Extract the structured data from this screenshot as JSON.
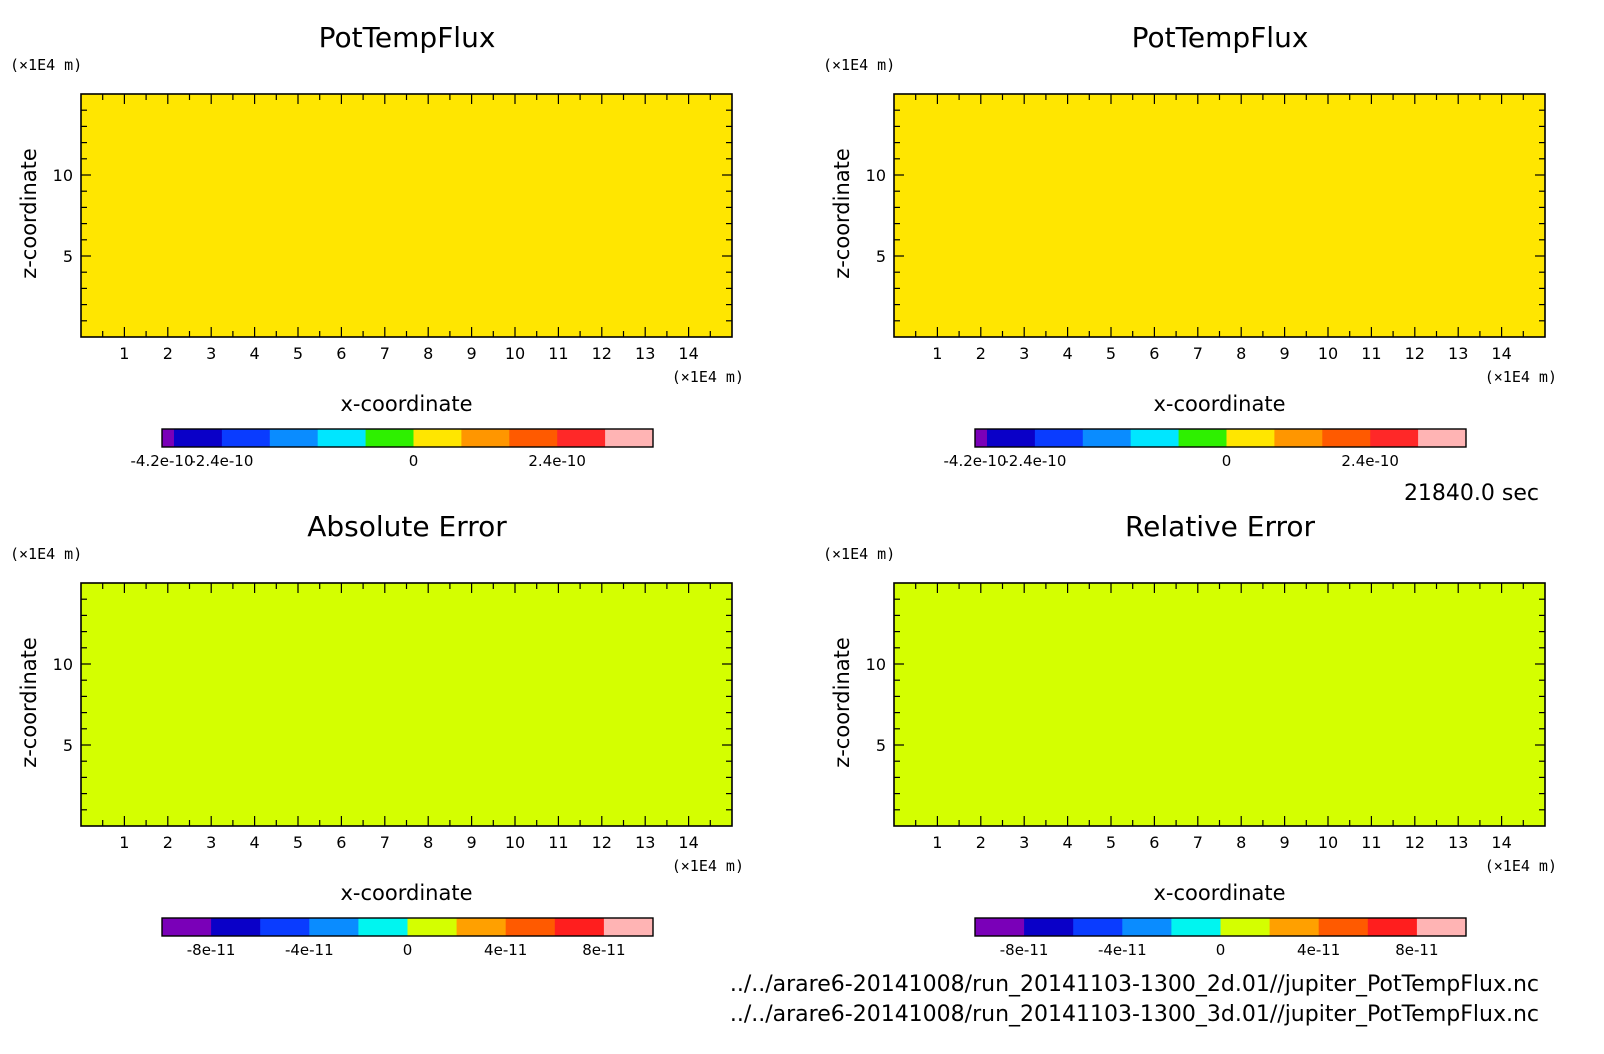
{
  "time_label": "21840.0 sec",
  "files": [
    "../../arare6-20141008/run_20141103-1300_2d.01//jupiter_PotTempFlux.nc",
    "../../arare6-20141008/run_20141103-1300_3d.01//jupiter_PotTempFlux.nc"
  ],
  "chart_data": [
    {
      "type": "heatmap",
      "title": "PotTempFlux",
      "xlabel": "x-coordinate",
      "ylabel": "z-coordinate",
      "x_unit": "(×1E4 m)",
      "y_unit": "(×1E4 m)",
      "xlim": [
        0,
        15
      ],
      "ylim": [
        0,
        15
      ],
      "x_ticks": [
        "1",
        "2",
        "3",
        "4",
        "5",
        "6",
        "7",
        "8",
        "9",
        "10",
        "11",
        "12",
        "13",
        "14"
      ],
      "y_ticks": [
        "5",
        "10"
      ],
      "field_color": "#ffe600",
      "colorbar": {
        "colors": [
          "#7a00b8",
          "#0a00c8",
          "#0a3cff",
          "#0a8cff",
          "#00e6ff",
          "#2ef000",
          "#ffe600",
          "#ff9600",
          "#ff5a00",
          "#ff2828",
          "#ffb4b4"
        ],
        "widths": [
          0.25,
          1,
          1,
          1,
          1,
          1,
          1,
          1,
          1,
          1,
          1
        ],
        "labels": [
          "-4.2e-10",
          "-2.4e-10",
          "0",
          "2.4e-10"
        ],
        "label_edges": [
          0,
          1.25,
          5.25,
          8.25
        ]
      }
    },
    {
      "type": "heatmap",
      "title": "PotTempFlux",
      "xlabel": "x-coordinate",
      "ylabel": "z-coordinate",
      "x_unit": "(×1E4 m)",
      "y_unit": "(×1E4 m)",
      "xlim": [
        0,
        15
      ],
      "ylim": [
        0,
        15
      ],
      "x_ticks": [
        "1",
        "2",
        "3",
        "4",
        "5",
        "6",
        "7",
        "8",
        "9",
        "10",
        "11",
        "12",
        "13",
        "14"
      ],
      "y_ticks": [
        "5",
        "10"
      ],
      "field_color": "#ffe600",
      "colorbar": {
        "colors": [
          "#7a00b8",
          "#0a00c8",
          "#0a3cff",
          "#0a8cff",
          "#00e6ff",
          "#2ef000",
          "#ffe600",
          "#ff9600",
          "#ff5a00",
          "#ff2828",
          "#ffb4b4"
        ],
        "widths": [
          0.25,
          1,
          1,
          1,
          1,
          1,
          1,
          1,
          1,
          1,
          1
        ],
        "labels": [
          "-4.2e-10",
          "-2.4e-10",
          "0",
          "2.4e-10"
        ],
        "label_edges": [
          0,
          1.25,
          5.25,
          8.25
        ]
      }
    },
    {
      "type": "heatmap",
      "title": "Absolute Error",
      "xlabel": "x-coordinate",
      "ylabel": "z-coordinate",
      "x_unit": "(×1E4 m)",
      "y_unit": "(×1E4 m)",
      "xlim": [
        0,
        15
      ],
      "ylim": [
        0,
        15
      ],
      "x_ticks": [
        "1",
        "2",
        "3",
        "4",
        "5",
        "6",
        "7",
        "8",
        "9",
        "10",
        "11",
        "12",
        "13",
        "14"
      ],
      "y_ticks": [
        "5",
        "10"
      ],
      "field_color": "#d4ff00",
      "colorbar": {
        "colors": [
          "#7a00b8",
          "#0a00c8",
          "#0a3cff",
          "#0a8cff",
          "#00f5f0",
          "#d4ff00",
          "#ffa000",
          "#ff5a00",
          "#ff1e1e",
          "#ffb4b4"
        ],
        "widths": [
          1,
          1,
          1,
          1,
          1,
          1,
          1,
          1,
          1,
          1
        ],
        "labels": [
          "-8e-11",
          "-4e-11",
          "0",
          "4e-11",
          "8e-11"
        ],
        "label_edges": [
          1,
          3,
          5,
          7,
          9
        ]
      }
    },
    {
      "type": "heatmap",
      "title": "Relative Error",
      "xlabel": "x-coordinate",
      "ylabel": "z-coordinate",
      "x_unit": "(×1E4 m)",
      "y_unit": "(×1E4 m)",
      "xlim": [
        0,
        15
      ],
      "ylim": [
        0,
        15
      ],
      "x_ticks": [
        "1",
        "2",
        "3",
        "4",
        "5",
        "6",
        "7",
        "8",
        "9",
        "10",
        "11",
        "12",
        "13",
        "14"
      ],
      "y_ticks": [
        "5",
        "10"
      ],
      "field_color": "#d4ff00",
      "colorbar": {
        "colors": [
          "#7a00b8",
          "#0a00c8",
          "#0a3cff",
          "#0a8cff",
          "#00f5f0",
          "#d4ff00",
          "#ffa000",
          "#ff5a00",
          "#ff1e1e",
          "#ffb4b4"
        ],
        "widths": [
          1,
          1,
          1,
          1,
          1,
          1,
          1,
          1,
          1,
          1
        ],
        "labels": [
          "-8e-11",
          "-4e-11",
          "0",
          "4e-11",
          "8e-11"
        ],
        "label_edges": [
          1,
          3,
          5,
          7,
          9
        ]
      }
    }
  ]
}
